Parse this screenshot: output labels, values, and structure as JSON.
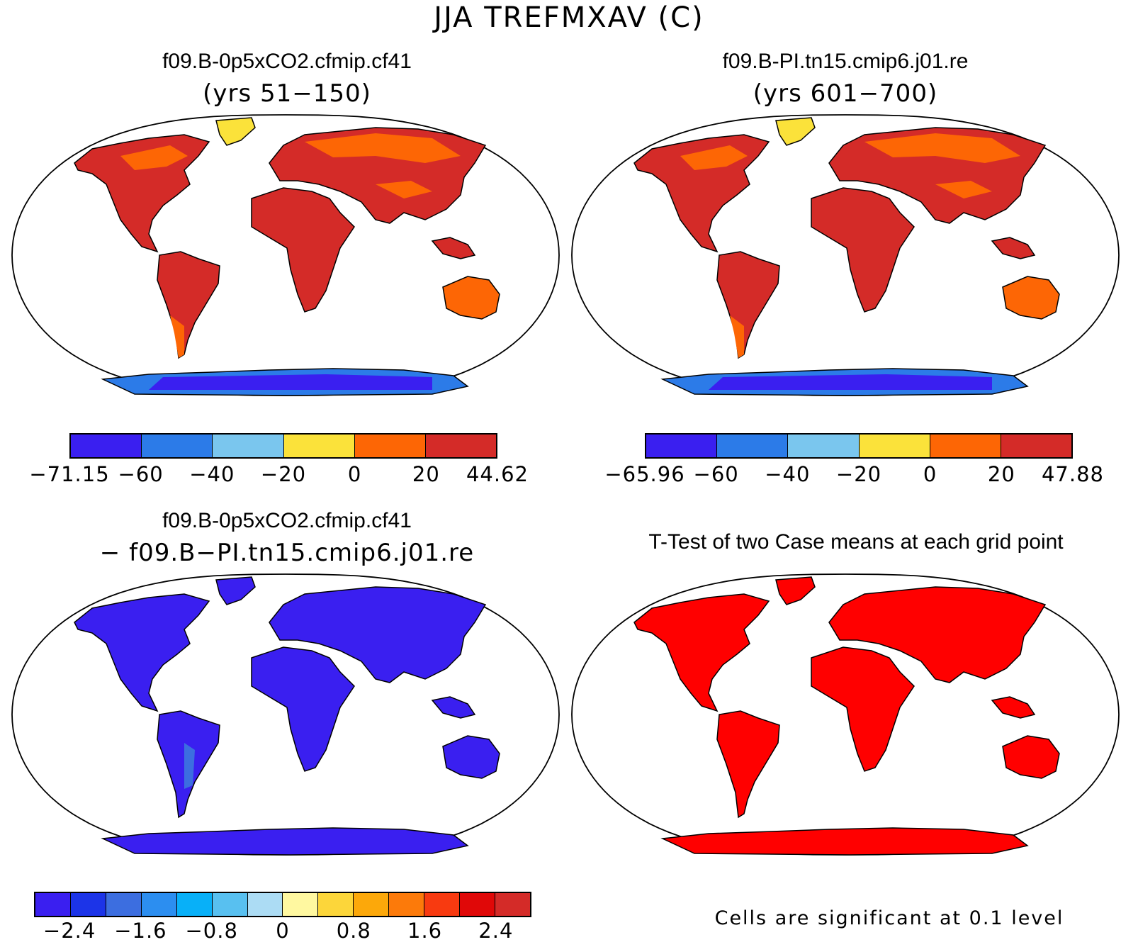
{
  "figure_title": "JJA TREFMXAV (C)",
  "colors": {
    "panel1": [
      "#3a1ff0",
      "#2c7be8",
      "#7ac6ee",
      "#fbe23a",
      "#fd6605",
      "#d42b28"
    ],
    "panel2": [
      "#3a1ff0",
      "#2c7be8",
      "#7ac6ee",
      "#fbe23a",
      "#fd6605",
      "#d42b28"
    ],
    "diff": [
      "#3a1ff0",
      "#1c34e8",
      "#3c6ee0",
      "#2c8ef0",
      "#08b0f8",
      "#58c0f0",
      "#acdcf4",
      "#fff8a0",
      "#fcd63a",
      "#fca80a",
      "#fc7a0a",
      "#f83a10",
      "#e00808",
      "#d42b28"
    ],
    "ttest": "#ff0000",
    "coast": "#000000"
  },
  "panels": [
    {
      "title": "f09.B-0p5xCO2.cfmip.cf41",
      "subtitle": "(yrs 51−150)",
      "colorbar_labels": [
        "−71.15",
        "−60",
        "−40",
        "−20",
        "0",
        "20",
        "44.62"
      ],
      "colorbar_ticks": [
        -71.15,
        -60,
        -40,
        -20,
        0,
        20,
        44.62
      ]
    },
    {
      "title": "f09.B-PI.tn15.cmip6.j01.re",
      "subtitle": "(yrs 601−700)",
      "colorbar_labels": [
        "−65.96",
        "−60",
        "−40",
        "−20",
        "0",
        "20",
        "47.88"
      ],
      "colorbar_ticks": [
        -65.96,
        -60,
        -40,
        -20,
        0,
        20,
        47.88
      ]
    },
    {
      "title": "f09.B-0p5xCO2.cfmip.cf41",
      "subtitle": "− f09.B−PI.tn15.cmip6.j01.re",
      "colorbar_labels": [
        "−2.4",
        "−1.6",
        "−0.8",
        "0",
        "0.8",
        "1.6",
        "2.4"
      ],
      "colorbar_ticks": [
        -2.4,
        -1.6,
        -0.8,
        0,
        0.8,
        1.6,
        2.4
      ]
    },
    {
      "title": "T-Test of two Case means at each grid point",
      "note": "Cells are significant at 0.1 level"
    }
  ]
}
